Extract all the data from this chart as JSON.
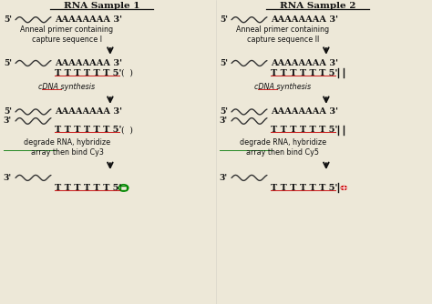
{
  "bg_color": "#ede8d8",
  "title1": "RNA Sample 1",
  "title2": "RNA Sample 2",
  "step1_L": "Anneal primer containing\ncapture sequence I",
  "step2_L": "cDNA synthesis",
  "step3_L": "degrade RNA, hybridize\narray then bind Cy3",
  "step1_R": "Anneal primer containing\ncapture sequence II",
  "step2_R": "cDNA synthesis",
  "step3_R": "degrade RNA, hybridize\narray then bind Cy5",
  "red_color": "#cc2222",
  "green_color": "#228822",
  "arrow_color": "#111111",
  "text_color": "#111111",
  "cy3_color": "#008800",
  "cy5_color": "#cc0000",
  "wave_color": "#333333"
}
